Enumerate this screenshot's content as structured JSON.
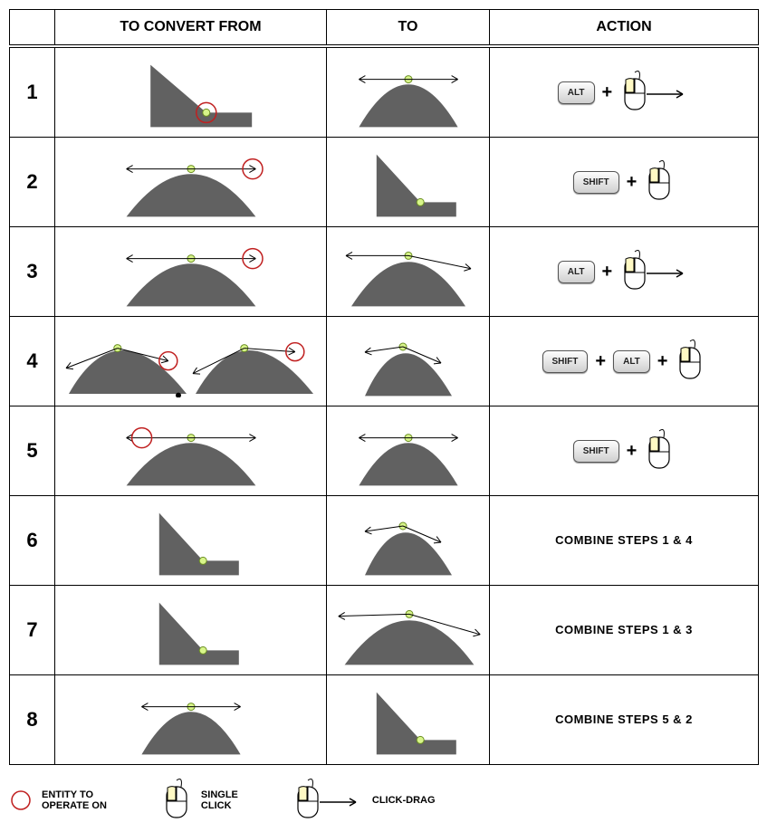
{
  "headers": {
    "num": "",
    "from": "TO CONVERT FROM",
    "to": "TO",
    "action": "ACTION"
  },
  "colors": {
    "shape_fill": "#616161",
    "anchor_fill": "#d8f58a",
    "anchor_stroke": "#6b8e23",
    "entity_circle": "#c02020",
    "handle_line": "#000000",
    "key_bg_top": "#fdfdfd",
    "key_bg_bot": "#cfcfcf",
    "mouse_highlight": "#fff9c4",
    "text": "#000000"
  },
  "keys": {
    "alt": "ALT",
    "shift": "SHIFT"
  },
  "rows": [
    {
      "num": "1",
      "from_type": "corner",
      "from_entity": true,
      "to_type": "smooth-flat",
      "action_type": "keys",
      "keys": [
        "alt"
      ],
      "mouse_drag": true
    },
    {
      "num": "2",
      "from_type": "smooth-flat",
      "from_entity": true,
      "to_type": "corner",
      "action_type": "keys",
      "keys": [
        "shift"
      ],
      "mouse_drag": false
    },
    {
      "num": "3",
      "from_type": "smooth-flat",
      "from_entity": true,
      "to_type": "smooth-broken",
      "action_type": "keys",
      "keys": [
        "alt"
      ],
      "mouse_drag": true
    },
    {
      "num": "4",
      "from_type": "broken-pair",
      "from_entity": true,
      "to_type": "smooth-broken-small",
      "action_type": "keys",
      "keys": [
        "shift",
        "alt"
      ],
      "mouse_drag": false
    },
    {
      "num": "5",
      "from_type": "smooth-flat-leftcircle",
      "from_entity": true,
      "to_type": "smooth-flat",
      "action_type": "keys",
      "keys": [
        "shift"
      ],
      "mouse_drag": false
    },
    {
      "num": "6",
      "from_type": "corner-plain",
      "from_entity": false,
      "to_type": "smooth-broken-small",
      "action_type": "text",
      "text": "COMBINE STEPS 1 & 4"
    },
    {
      "num": "7",
      "from_type": "corner-plain",
      "from_entity": false,
      "to_type": "smooth-broken-wide",
      "action_type": "text",
      "text": "COMBINE STEPS 1 & 3"
    },
    {
      "num": "8",
      "from_type": "smooth-flat-plain",
      "from_entity": false,
      "to_type": "corner",
      "action_type": "text",
      "text": "COMBINE STEPS 5 & 2"
    }
  ],
  "legend": {
    "entity": {
      "label_l1": "ENTITY TO",
      "label_l2": "OPERATE ON"
    },
    "single": {
      "label_l1": "SINGLE",
      "label_l2": "CLICK"
    },
    "drag": {
      "label": "CLICK-DRAG"
    }
  }
}
